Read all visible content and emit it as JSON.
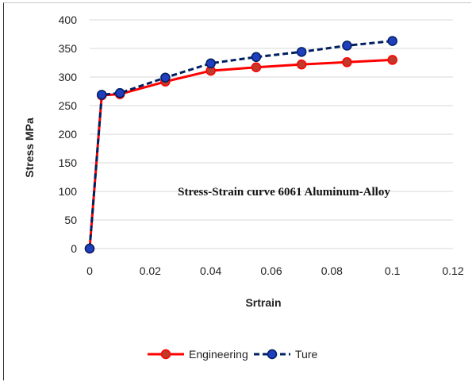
{
  "chart_data": {
    "type": "line",
    "title": "",
    "annotation": "Stress-Strain curve 6061 Aluminum-Alloy",
    "xlabel": "Srtrain",
    "ylabel": "Stress MPa",
    "xlim": [
      0,
      0.12
    ],
    "ylim": [
      0,
      400
    ],
    "xticks": [
      0,
      0.02,
      0.04,
      0.06,
      0.08,
      0.1,
      0.12
    ],
    "xtick_labels": [
      "0",
      "0.02",
      "0.04",
      "0.06",
      "0.08",
      "0.1",
      "0.12"
    ],
    "yticks": [
      0,
      50,
      100,
      150,
      200,
      250,
      300,
      350,
      400
    ],
    "ytick_labels": [
      "0",
      "50",
      "100",
      "150",
      "200",
      "250",
      "300",
      "350",
      "400"
    ],
    "grid": "horizontal",
    "legend_position": "bottom",
    "series": [
      {
        "name": "Engineering",
        "color": "#ff0000",
        "marker_color": "#c0392b",
        "line_style": "solid",
        "x": [
          0,
          0.004,
          0.01,
          0.025,
          0.04,
          0.055,
          0.07,
          0.085,
          0.1
        ],
        "y": [
          0,
          268,
          270,
          292,
          311,
          317,
          322,
          326,
          330
        ]
      },
      {
        "name": "Ture",
        "color": "#002060",
        "marker_color": "#1f3fbf",
        "line_style": "dashed",
        "x": [
          0,
          0.004,
          0.01,
          0.025,
          0.04,
          0.055,
          0.07,
          0.085,
          0.1
        ],
        "y": [
          0,
          269,
          272,
          299,
          324,
          335,
          344,
          355,
          363
        ]
      }
    ]
  }
}
